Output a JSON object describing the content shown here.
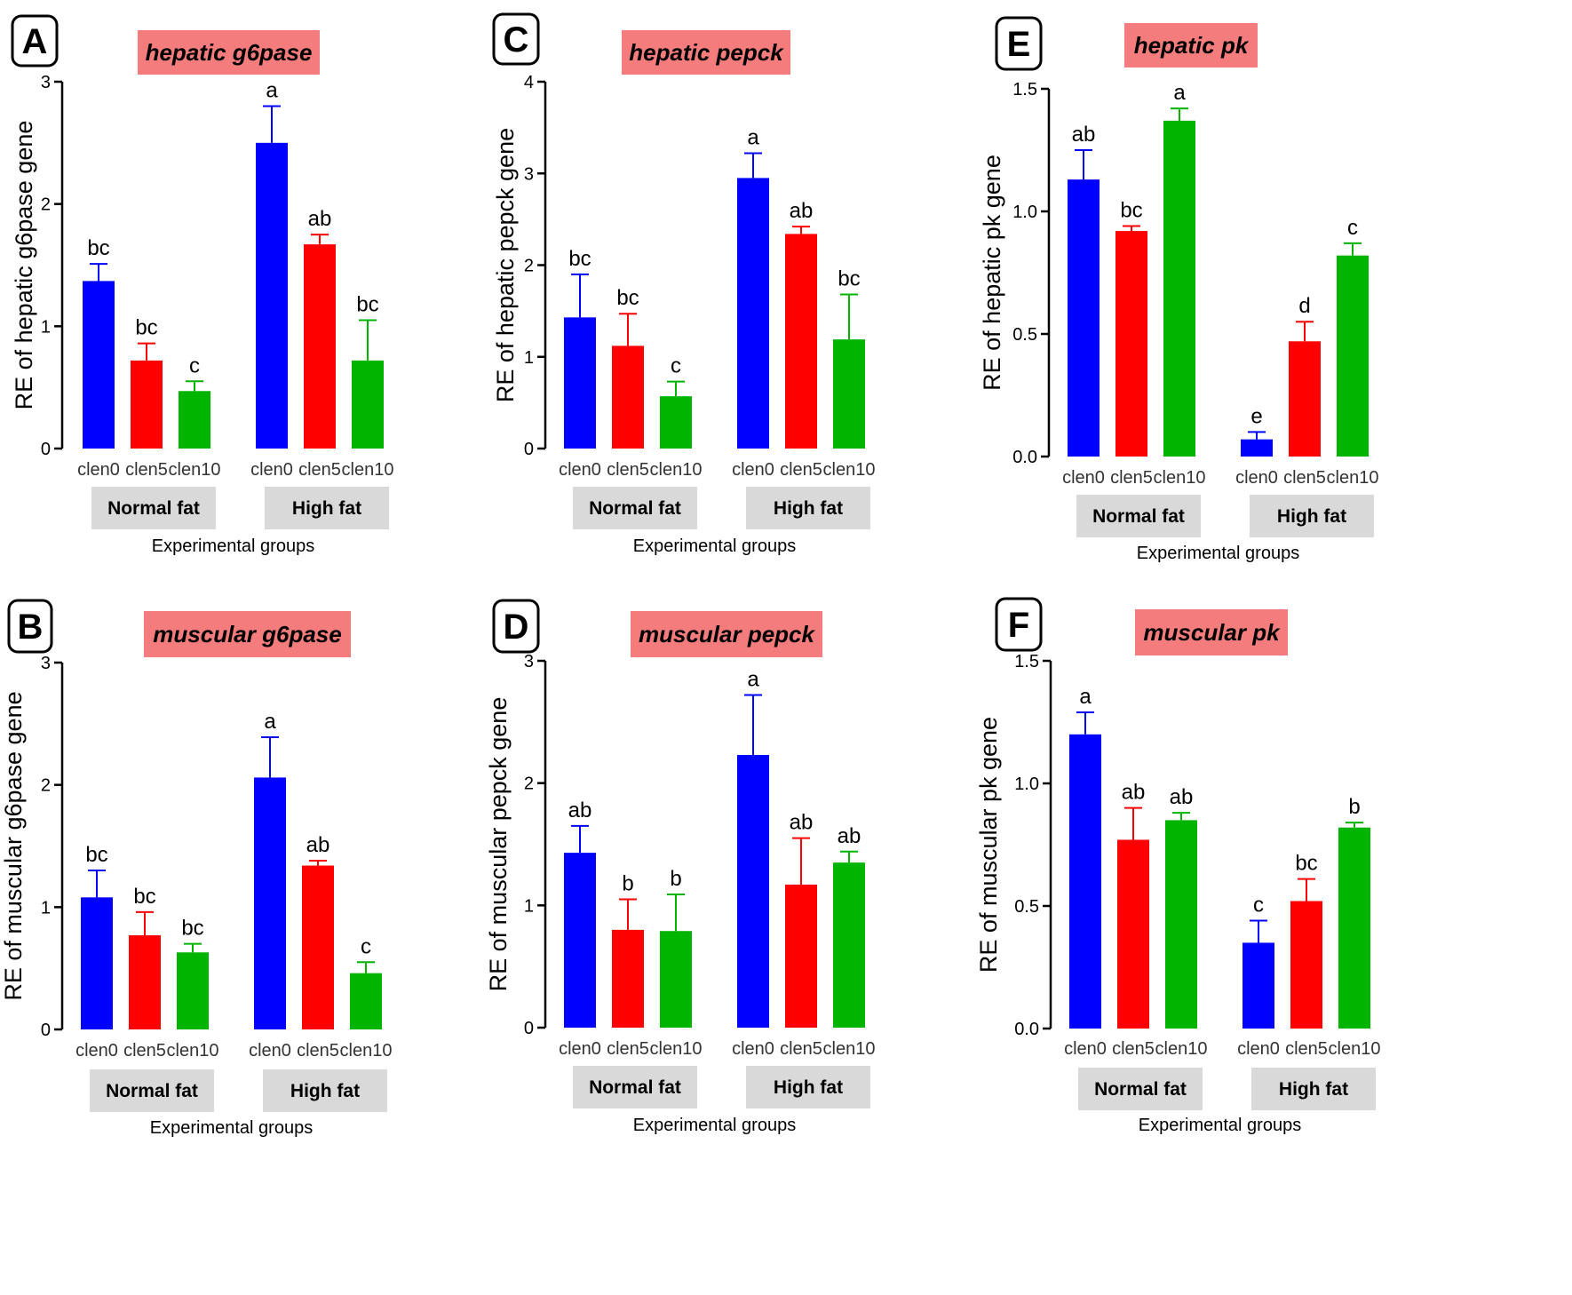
{
  "figure": {
    "axis_xlabel": "Experimental groups",
    "group_labels": [
      "Normal fat",
      "High fat"
    ],
    "bar_colors": [
      "#0000ff",
      "#ff0000",
      "#00b400"
    ],
    "title_bg": "#f47c7c"
  },
  "chart_data": [
    {
      "id": "A",
      "panel_letter": "A",
      "type": "bar",
      "title": "hepatic g6pase",
      "ylabel": "RE of hepatic g6pase gene",
      "xlabel": "Experimental groups",
      "ylim": [
        0,
        3
      ],
      "yticks": [
        0,
        1,
        2,
        3
      ],
      "ytick_labels": [
        "0",
        "1",
        "2",
        "3"
      ],
      "groups": [
        "Normal fat",
        "High fat"
      ],
      "categories": [
        "clen0",
        "clen5",
        "clen10"
      ],
      "series": [
        {
          "group": "Normal fat",
          "values": [
            1.37,
            0.72,
            0.47
          ],
          "errors": [
            0.14,
            0.14,
            0.08
          ],
          "letters": [
            "bc",
            "bc",
            "c"
          ]
        },
        {
          "group": "High fat",
          "values": [
            2.5,
            1.67,
            0.72
          ],
          "errors": [
            0.3,
            0.08,
            0.33
          ],
          "letters": [
            "a",
            "ab",
            "bc"
          ]
        }
      ]
    },
    {
      "id": "B",
      "panel_letter": "B",
      "type": "bar",
      "title": "muscular g6pase",
      "ylabel": "RE of muscular g6pase gene",
      "xlabel": "Experimental groups",
      "ylim": [
        0,
        3
      ],
      "yticks": [
        0,
        1,
        2,
        3
      ],
      "ytick_labels": [
        "0",
        "1",
        "2",
        "3"
      ],
      "groups": [
        "Normal fat",
        "High fat"
      ],
      "categories": [
        "clen0",
        "clen5",
        "clen10"
      ],
      "series": [
        {
          "group": "Normal fat",
          "values": [
            1.08,
            0.77,
            0.63
          ],
          "errors": [
            0.22,
            0.19,
            0.07
          ],
          "letters": [
            "bc",
            "bc",
            "bc"
          ]
        },
        {
          "group": "High fat",
          "values": [
            2.06,
            1.34,
            0.46
          ],
          "errors": [
            0.33,
            0.04,
            0.09
          ],
          "letters": [
            "a",
            "ab",
            "c"
          ]
        }
      ]
    },
    {
      "id": "C",
      "panel_letter": "C",
      "type": "bar",
      "title": "hepatic pepck",
      "ylabel": "RE of hepatic pepck gene",
      "xlabel": "Experimental groups",
      "ylim": [
        0,
        4
      ],
      "yticks": [
        0,
        1,
        2,
        3,
        4
      ],
      "ytick_labels": [
        "0",
        "1",
        "2",
        "3",
        "4"
      ],
      "groups": [
        "Normal fat",
        "High fat"
      ],
      "categories": [
        "clen0",
        "clen5",
        "clen10"
      ],
      "series": [
        {
          "group": "Normal fat",
          "values": [
            1.43,
            1.12,
            0.57
          ],
          "errors": [
            0.47,
            0.35,
            0.16
          ],
          "letters": [
            "bc",
            "bc",
            "c"
          ]
        },
        {
          "group": "High fat",
          "values": [
            2.95,
            2.34,
            1.19
          ],
          "errors": [
            0.27,
            0.08,
            0.49
          ],
          "letters": [
            "a",
            "ab",
            "bc"
          ]
        }
      ]
    },
    {
      "id": "D",
      "panel_letter": "D",
      "type": "bar",
      "title": "muscular pepck",
      "ylabel": "RE of muscular pepck gene",
      "xlabel": "Experimental groups",
      "ylim": [
        0,
        3
      ],
      "yticks": [
        0,
        1,
        2,
        3
      ],
      "ytick_labels": [
        "0",
        "1",
        "2",
        "3"
      ],
      "groups": [
        "Normal fat",
        "High fat"
      ],
      "categories": [
        "clen0",
        "clen5",
        "clen10"
      ],
      "series": [
        {
          "group": "Normal fat",
          "values": [
            1.43,
            0.8,
            0.79
          ],
          "errors": [
            0.22,
            0.25,
            0.3
          ],
          "letters": [
            "ab",
            "b",
            "b"
          ]
        },
        {
          "group": "High fat",
          "values": [
            2.23,
            1.17,
            1.35
          ],
          "errors": [
            0.49,
            0.38,
            0.09
          ],
          "letters": [
            "a",
            "ab",
            "ab"
          ]
        }
      ]
    },
    {
      "id": "E",
      "panel_letter": "E",
      "type": "bar",
      "title": "hepatic pk",
      "ylabel": "RE of hepatic pk gene",
      "xlabel": "Experimental groups",
      "ylim": [
        0,
        1.5
      ],
      "yticks": [
        0,
        0.5,
        1.0,
        1.5
      ],
      "ytick_labels": [
        "0.0",
        "0.5",
        "1.0",
        "1.5"
      ],
      "groups": [
        "Normal fat",
        "High fat"
      ],
      "categories": [
        "clen0",
        "clen5",
        "clen10"
      ],
      "series": [
        {
          "group": "Normal fat",
          "values": [
            1.13,
            0.92,
            1.37
          ],
          "errors": [
            0.12,
            0.02,
            0.05
          ],
          "letters": [
            "ab",
            "bc",
            "a"
          ]
        },
        {
          "group": "High fat",
          "values": [
            0.07,
            0.47,
            0.82
          ],
          "errors": [
            0.03,
            0.08,
            0.05
          ],
          "letters": [
            "e",
            "d",
            "c"
          ]
        }
      ]
    },
    {
      "id": "F",
      "panel_letter": "F",
      "type": "bar",
      "title": "muscular pk",
      "ylabel": "RE of muscular pk gene",
      "xlabel": "Experimental groups",
      "ylim": [
        0,
        1.5
      ],
      "yticks": [
        0,
        0.5,
        1.0,
        1.5
      ],
      "ytick_labels": [
        "0.0",
        "0.5",
        "1.0",
        "1.5"
      ],
      "groups": [
        "Normal fat",
        "High fat"
      ],
      "categories": [
        "clen0",
        "clen5",
        "clen10"
      ],
      "series": [
        {
          "group": "Normal fat",
          "values": [
            1.2,
            0.77,
            0.85
          ],
          "errors": [
            0.09,
            0.13,
            0.03
          ],
          "letters": [
            "a",
            "ab",
            "ab"
          ]
        },
        {
          "group": "High fat",
          "values": [
            0.35,
            0.52,
            0.82
          ],
          "errors": [
            0.09,
            0.09,
            0.02
          ],
          "letters": [
            "c",
            "bc",
            "b"
          ]
        }
      ]
    }
  ]
}
